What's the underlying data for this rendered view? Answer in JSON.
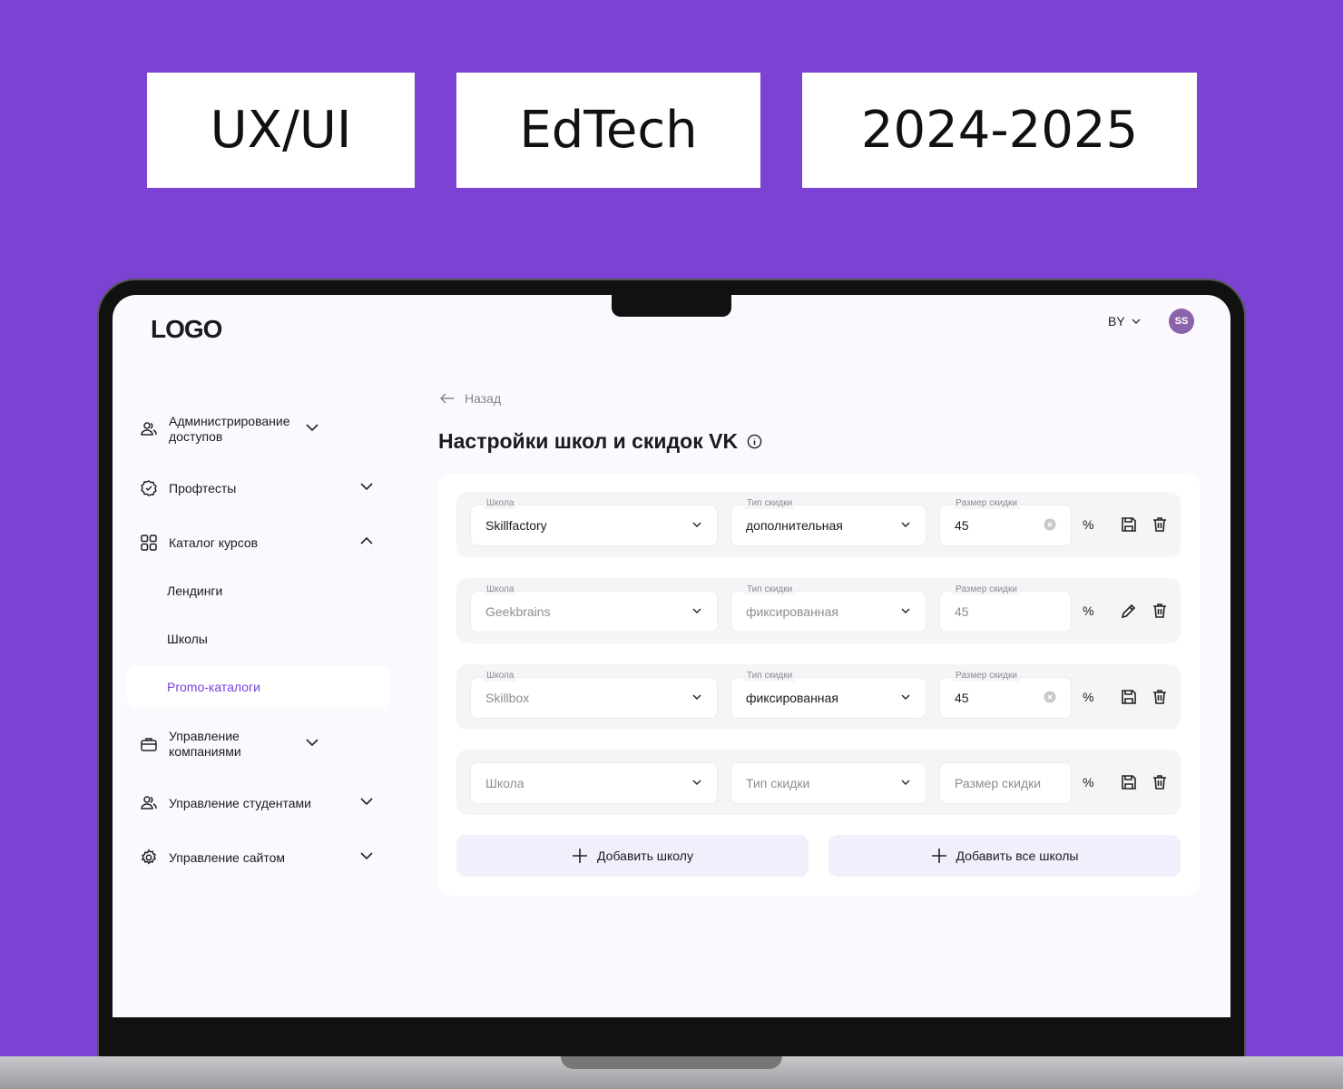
{
  "tags": [
    "UX/UI",
    "EdTech",
    "2024-2025"
  ],
  "header": {
    "logo": "LOGO",
    "language": "BY",
    "avatar": "SS"
  },
  "sidebar": {
    "items": [
      {
        "label": "Администрирование доступов",
        "icon": "users-icon",
        "expanded": false
      },
      {
        "label": "Профтесты",
        "icon": "badge-check-icon",
        "expanded": false
      },
      {
        "label": "Каталог курсов",
        "icon": "grid-icon",
        "expanded": true
      },
      {
        "label": "Управление компаниями",
        "icon": "briefcase-icon",
        "expanded": false
      },
      {
        "label": "Управление студентами",
        "icon": "users-icon",
        "expanded": false
      },
      {
        "label": "Управление сайтом",
        "icon": "gear-icon",
        "expanded": false
      }
    ],
    "subitems": [
      {
        "label": "Лендинги"
      },
      {
        "label": "Школы"
      },
      {
        "label": "Promo-каталоги",
        "active": true
      }
    ]
  },
  "main": {
    "back": "Назад",
    "title": "Настройки школ и скидок VK",
    "labels": {
      "school": "Школа",
      "type": "Тип скидки",
      "size": "Размер скидки",
      "percent": "%"
    },
    "rows": [
      {
        "school": "Skillfactory",
        "type": "дополнительная",
        "size": "45",
        "state": "editing"
      },
      {
        "school": "Geekbrains",
        "type": "фиксированная",
        "size": "45",
        "state": "saved"
      },
      {
        "school": "Skillbox",
        "type": "фиксированная",
        "size": "45",
        "state": "editing"
      },
      {
        "school": "",
        "type": "",
        "size": "",
        "state": "new"
      }
    ],
    "add_school": "Добавить школу",
    "add_all": "Добавить все школы"
  },
  "colors": {
    "background": "#7B42D3",
    "accent": "#7B3FE0",
    "button_bg": "#F3EEFC"
  }
}
